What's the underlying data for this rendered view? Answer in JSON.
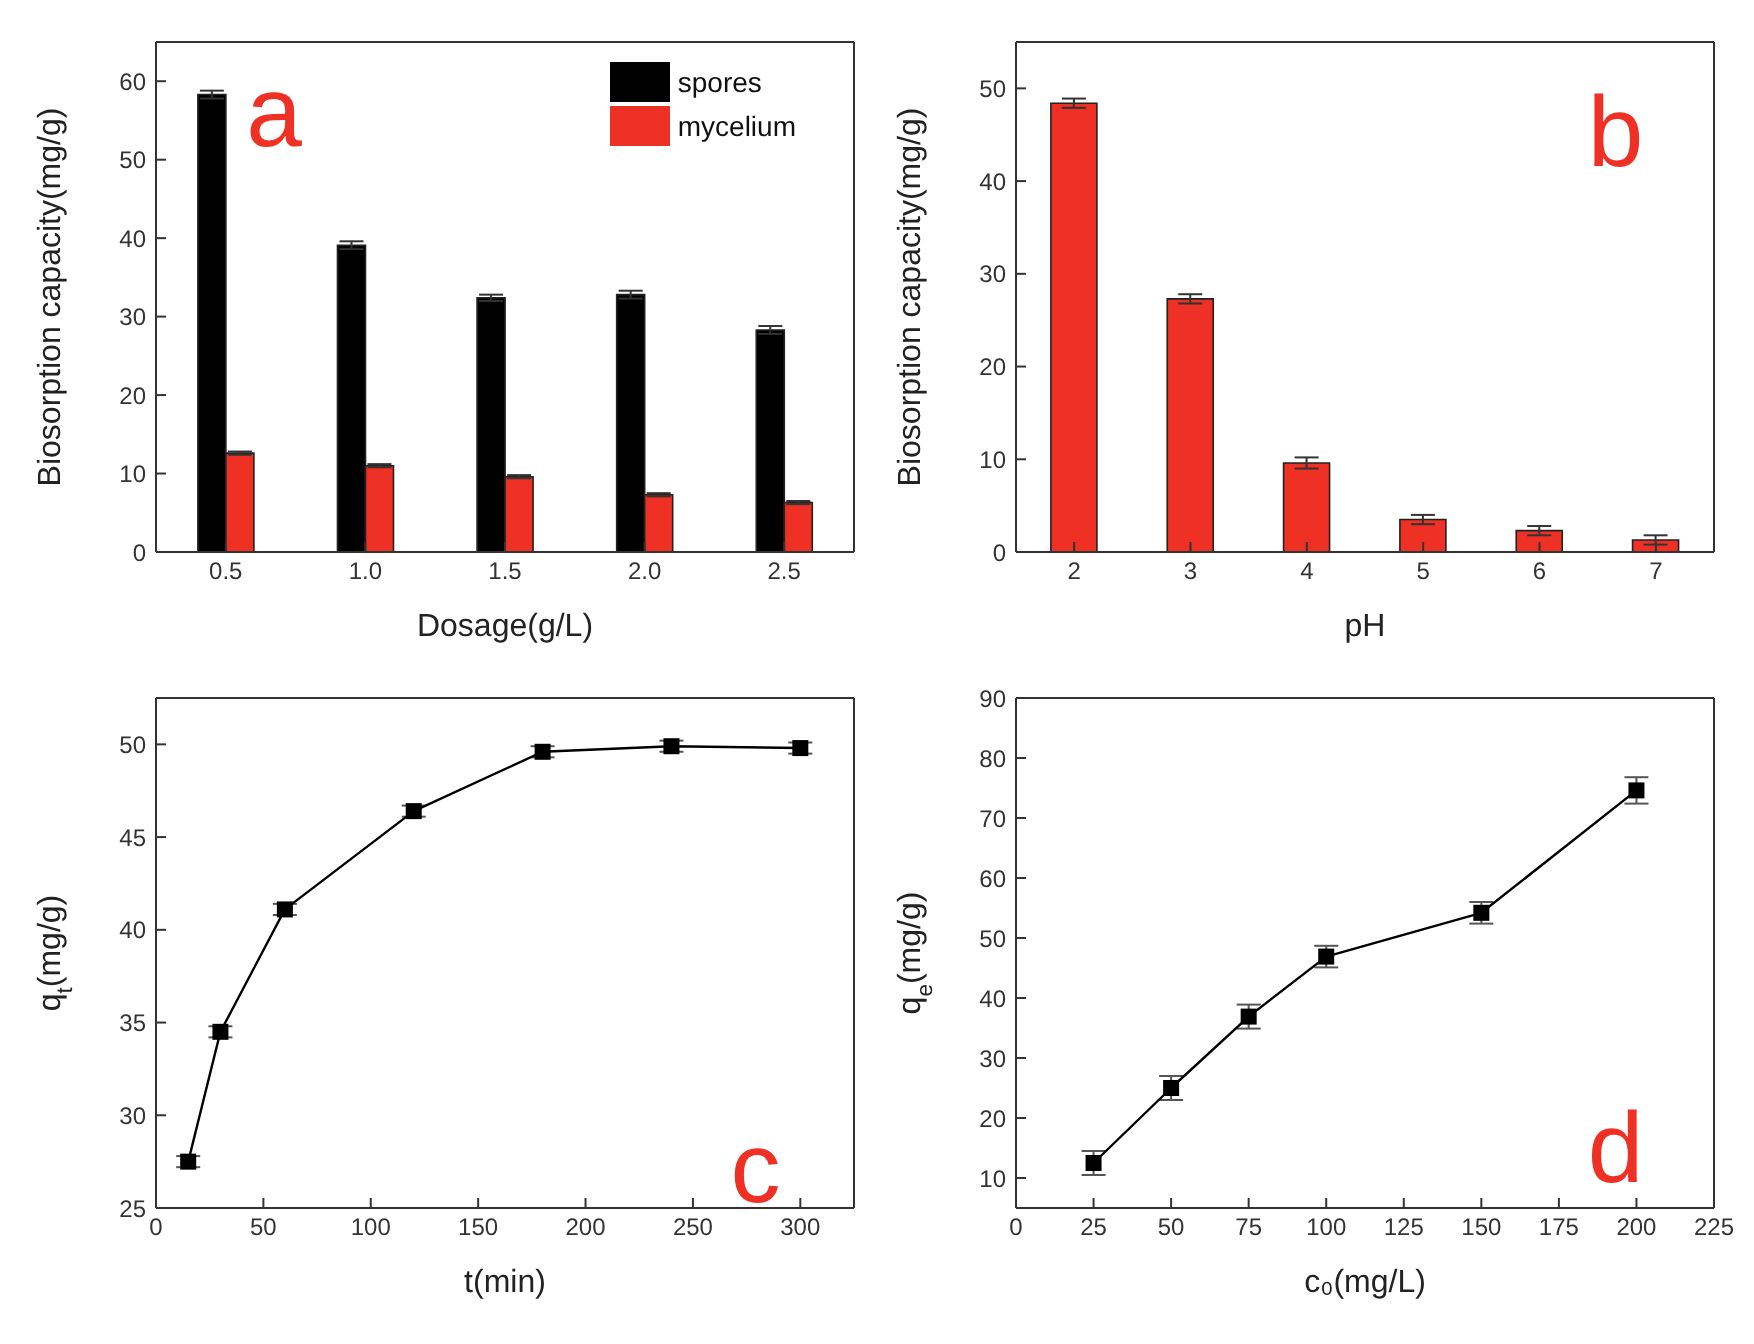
{
  "chart_data": [
    {
      "type": "bar",
      "xlabel": "Dosage(g/L)",
      "ylabel": "Biosorption capacity(mg/g)",
      "categories": [
        "0.5",
        "1.0",
        "1.5",
        "2.0",
        "2.5"
      ],
      "series": [
        {
          "name": "spores",
          "color": "#000000",
          "values": [
            58.3,
            39.1,
            32.4,
            32.8,
            28.3
          ],
          "errors": [
            0.5,
            0.5,
            0.4,
            0.5,
            0.5
          ]
        },
        {
          "name": "mycelium",
          "color": "#ee3124",
          "values": [
            12.6,
            11.0,
            9.6,
            7.3,
            6.3
          ],
          "errors": [
            0.2,
            0.2,
            0.2,
            0.2,
            0.2
          ]
        }
      ],
      "ylim": [
        0,
        65
      ],
      "yticks": [
        0,
        10,
        20,
        30,
        40,
        50,
        60
      ],
      "legend": "top right",
      "annotations": [
        "a"
      ]
    },
    {
      "type": "bar",
      "xlabel": "pH",
      "ylabel": "Biosorption capacity(mg/g)",
      "categories": [
        "2",
        "3",
        "4",
        "5",
        "6",
        "7"
      ],
      "values": [
        48.4,
        27.3,
        9.6,
        3.5,
        2.3,
        1.3
      ],
      "errors": [
        0.5,
        0.5,
        0.6,
        0.5,
        0.5,
        0.5
      ],
      "color": "#ee3124",
      "ylim": [
        0,
        55
      ],
      "yticks": [
        0,
        10,
        20,
        30,
        40,
        50
      ],
      "annotations": [
        "b"
      ]
    },
    {
      "type": "line",
      "xlabel": "t(min)",
      "ylabel": "q$_{t}$(mg/g)",
      "x": [
        15,
        30,
        60,
        120,
        180,
        240,
        300
      ],
      "values": [
        27.5,
        34.5,
        41.1,
        46.4,
        49.6,
        49.9,
        49.8
      ],
      "errors": [
        0.3,
        0.3,
        0.3,
        0.3,
        0.3,
        0.3,
        0.3
      ],
      "color": "#000000",
      "marker": "square",
      "xlim": [
        0,
        325
      ],
      "xticks": [
        0,
        50,
        100,
        150,
        200,
        250,
        300
      ],
      "ylim": [
        25,
        52.5
      ],
      "yticks": [
        25,
        30,
        35,
        40,
        45,
        50
      ],
      "annotations": [
        "c"
      ]
    },
    {
      "type": "line",
      "xlabel": "c₀(mg/L)",
      "ylabel": "q$_{e}$(mg/g)",
      "x": [
        25,
        50,
        75,
        100,
        150,
        200
      ],
      "values": [
        12.5,
        25.0,
        36.9,
        46.9,
        54.2,
        74.6
      ],
      "errors": [
        2,
        2,
        2,
        1.8,
        1.8,
        2.2
      ],
      "color": "#000000",
      "marker": "square",
      "xlim": [
        0,
        225
      ],
      "xticks": [
        0,
        25,
        50,
        75,
        100,
        125,
        150,
        175,
        200,
        225
      ],
      "ylim": [
        5,
        90
      ],
      "yticks": [
        10,
        20,
        30,
        40,
        50,
        60,
        70,
        80,
        90
      ],
      "annotations": [
        "d"
      ]
    }
  ]
}
